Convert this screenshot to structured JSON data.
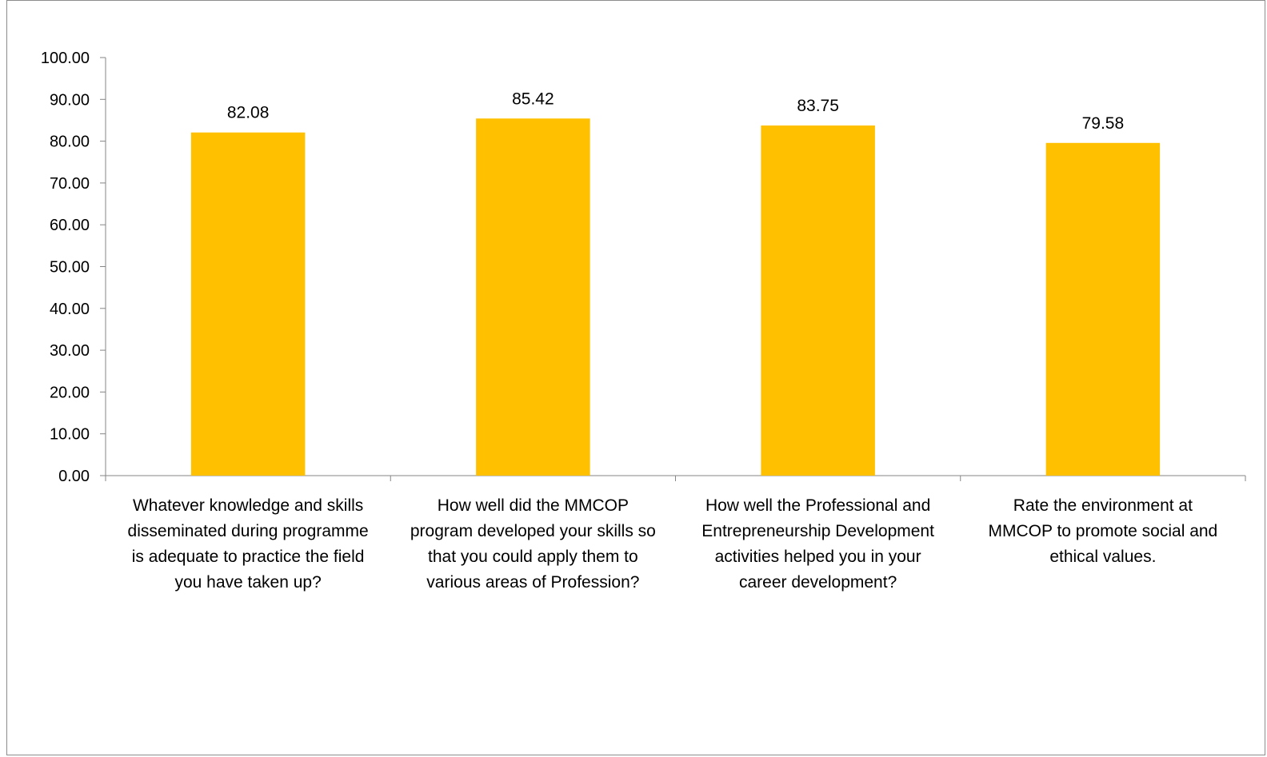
{
  "chart_data": {
    "type": "bar",
    "title": "",
    "xlabel": "",
    "ylabel": "",
    "ylim": [
      0,
      100
    ],
    "ytick_step": 10,
    "ytick_labels": [
      "0.00",
      "10.00",
      "20.00",
      "30.00",
      "40.00",
      "50.00",
      "60.00",
      "70.00",
      "80.00",
      "90.00",
      "100.00"
    ],
    "grid": false,
    "legend": "none",
    "bar_color": "#ffc000",
    "categories": [
      "Whatever knowledge and skills disseminated during programme is adequate to practice the field you have taken up?",
      "How well did the MMCOP program developed your skills so that you could apply them to various areas of Profession?",
      "How well the Professional and Entrepreneurship Development activities helped you in your career development?",
      "Rate the environment at MMCOP to promote social and ethical values."
    ],
    "category_lines": [
      [
        "Whatever knowledge and skills",
        "disseminated during programme",
        "is adequate to practice the field",
        "you have taken up?"
      ],
      [
        "How well did the MMCOP",
        "program developed your skills so",
        "that you could apply them to",
        "various areas of Profession?"
      ],
      [
        "How well the Professional and",
        "Entrepreneurship Development",
        "activities helped you in your",
        "career development?"
      ],
      [
        "Rate the environment at",
        "MMCOP to promote social and",
        "ethical values."
      ]
    ],
    "values": [
      82.08,
      85.42,
      83.75,
      79.58
    ],
    "value_labels": [
      "82.08",
      "85.42",
      "83.75",
      "79.58"
    ]
  }
}
